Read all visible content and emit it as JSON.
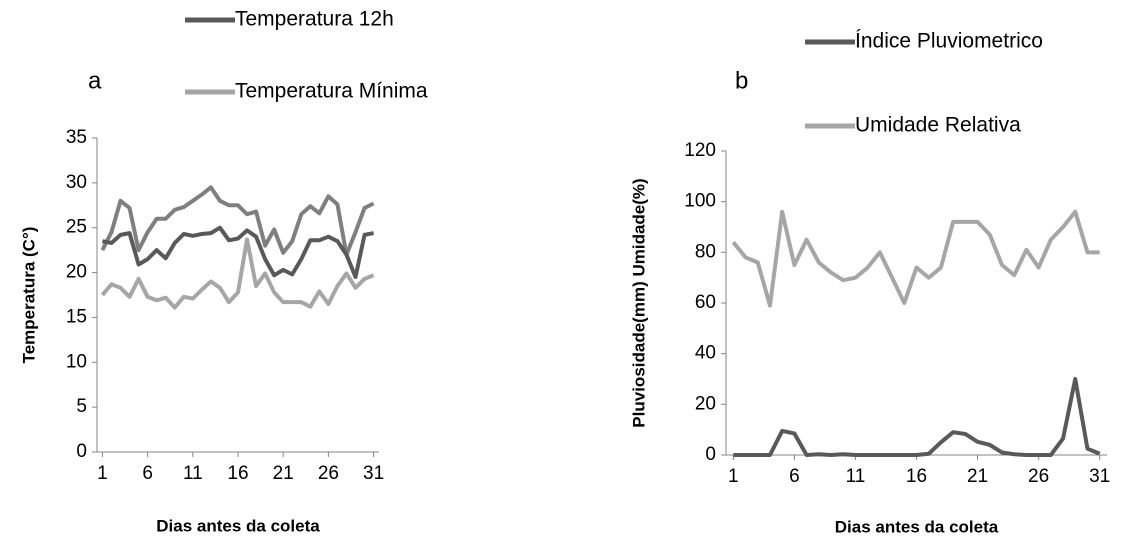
{
  "chart_data": [
    {
      "type": "line",
      "panel_label": "a",
      "y_label": "Temperatura (C°)",
      "x_label": "Dias antes da coleta",
      "x": [
        1,
        2,
        3,
        4,
        5,
        6,
        7,
        8,
        9,
        10,
        11,
        12,
        13,
        14,
        15,
        16,
        17,
        18,
        19,
        20,
        21,
        22,
        23,
        24,
        25,
        26,
        27,
        28,
        29,
        30,
        31
      ],
      "xlim": [
        0.4,
        31.6
      ],
      "xticks": [
        1,
        6,
        11,
        16,
        21,
        26,
        31
      ],
      "ylim": [
        0,
        35
      ],
      "yticks": [
        0,
        5,
        10,
        15,
        20,
        25,
        30,
        35
      ],
      "series": [
        {
          "color": "#7f7f7f",
          "values": [
            22.5,
            24.5,
            28,
            27.2,
            22.5,
            24.5,
            26,
            26,
            27,
            27.3,
            28,
            28.7,
            29.5,
            28,
            27.5,
            27.5,
            26.5,
            26.8,
            23,
            24.8,
            22.2,
            23.5,
            26.5,
            27.4,
            26.6,
            28.5,
            27.6,
            22,
            24.5,
            27.2,
            27.7
          ]
        },
        {
          "name": "Temperatura 12h",
          "color": "#595959",
          "values": [
            23.5,
            23.3,
            24.2,
            24.4,
            20.9,
            21.5,
            22.5,
            21.6,
            23.3,
            24.3,
            24.1,
            24.3,
            24.4,
            25,
            23.6,
            23.8,
            24.7,
            24,
            21.5,
            19.7,
            20.3,
            19.8,
            21.5,
            23.6,
            23.6,
            24,
            23.5,
            22,
            19.5,
            24.2,
            24.4
          ]
        },
        {
          "name": "Temperatura Mínima",
          "color": "#a6a6a6",
          "values": [
            17.5,
            18.7,
            18.3,
            17.3,
            19.3,
            17.3,
            16.9,
            17.2,
            16.1,
            17.3,
            17.1,
            18.1,
            19,
            18.3,
            16.7,
            17.8,
            23.7,
            18.5,
            19.9,
            17.8,
            16.7,
            16.7,
            16.7,
            16.2,
            17.9,
            16.5,
            18.5,
            19.9,
            18.3,
            19.3,
            19.7
          ]
        }
      ]
    },
    {
      "type": "line",
      "panel_label": "b",
      "y_label": "Pluviosidade(mm) Umidade(%)",
      "x_label": "Dias antes da coleta",
      "x": [
        1,
        2,
        3,
        4,
        5,
        6,
        7,
        8,
        9,
        10,
        11,
        12,
        13,
        14,
        15,
        16,
        17,
        18,
        19,
        20,
        21,
        22,
        23,
        24,
        25,
        26,
        27,
        28,
        29,
        30,
        31
      ],
      "xlim": [
        0.4,
        31.6
      ],
      "xticks": [
        1,
        6,
        11,
        16,
        21,
        26,
        31
      ],
      "ylim": [
        0,
        120
      ],
      "yticks": [
        0,
        20,
        40,
        60,
        80,
        100,
        120
      ],
      "series": [
        {
          "name": "Índice Pluviometrico",
          "color": "#595959",
          "values": [
            0,
            0,
            0,
            0,
            9.5,
            8.5,
            0,
            0.3,
            0,
            0.3,
            0,
            0,
            0,
            0,
            0,
            0,
            0.5,
            5,
            9,
            8.3,
            5.2,
            4,
            1,
            0.3,
            0,
            0,
            0,
            6.5,
            30,
            2.5,
            0.5
          ]
        },
        {
          "name": "Umidade Relativa",
          "color": "#a6a6a6",
          "values": [
            84,
            78,
            76,
            59,
            96,
            75,
            85,
            76,
            72,
            69,
            70,
            74,
            80,
            70,
            60,
            74,
            70,
            74,
            92,
            92,
            92,
            87,
            75,
            71,
            81,
            74,
            85,
            90,
            96,
            80,
            80
          ]
        }
      ]
    }
  ]
}
